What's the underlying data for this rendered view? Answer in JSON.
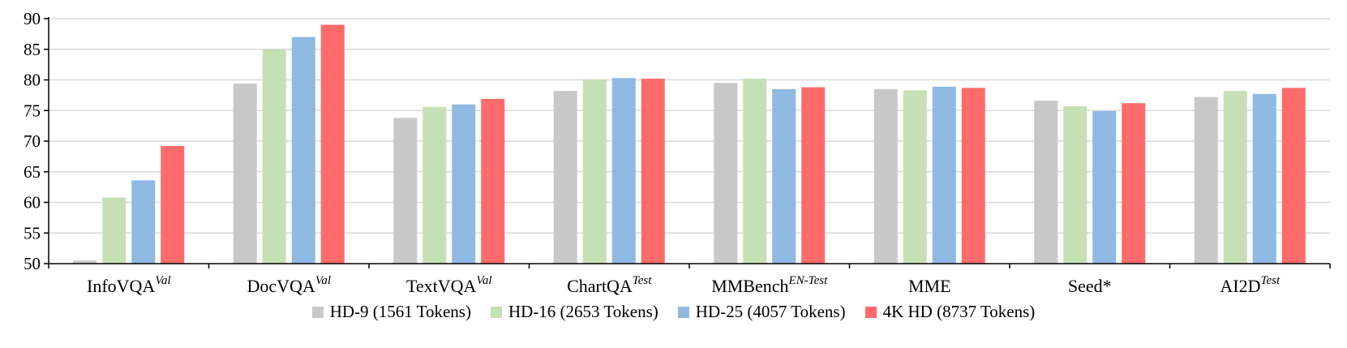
{
  "chart_data": {
    "type": "bar",
    "ylim": [
      50,
      90
    ],
    "yticks": [
      50,
      55,
      60,
      65,
      70,
      75,
      80,
      85,
      90
    ],
    "grid": true,
    "legend_position": "bottom",
    "categories": [
      {
        "name": "InfoVQA",
        "sup": "Val"
      },
      {
        "name": "DocVQA",
        "sup": "Val"
      },
      {
        "name": "TextVQA",
        "sup": "Val"
      },
      {
        "name": "ChartQA",
        "sup": "Test"
      },
      {
        "name": "MMBench",
        "sup": "EN-Test"
      },
      {
        "name": "MME",
        "sup": ""
      },
      {
        "name": "Seed*",
        "sup": ""
      },
      {
        "name": "AI2D",
        "sup": "Test"
      }
    ],
    "series": [
      {
        "name": "HD-9 (1561 Tokens)",
        "color": "#c8c8c8",
        "values": [
          50.5,
          79.4,
          73.8,
          78.2,
          79.5,
          78.5,
          76.6,
          77.2
        ]
      },
      {
        "name": "HD-16 (2653 Tokens)",
        "color": "#c5e0b4",
        "values": [
          60.8,
          85.0,
          75.6,
          80.1,
          80.2,
          78.3,
          75.7,
          78.2
        ]
      },
      {
        "name": "HD-25 (4057 Tokens)",
        "color": "#8fb9e2",
        "values": [
          63.6,
          87.0,
          76.0,
          80.3,
          78.5,
          78.9,
          74.9,
          77.7
        ]
      },
      {
        "name": "4K HD (8737 Tokens)",
        "color": "#ff6b6b",
        "values": [
          69.2,
          89.0,
          76.9,
          80.2,
          78.8,
          78.7,
          76.2,
          78.7
        ]
      }
    ]
  }
}
